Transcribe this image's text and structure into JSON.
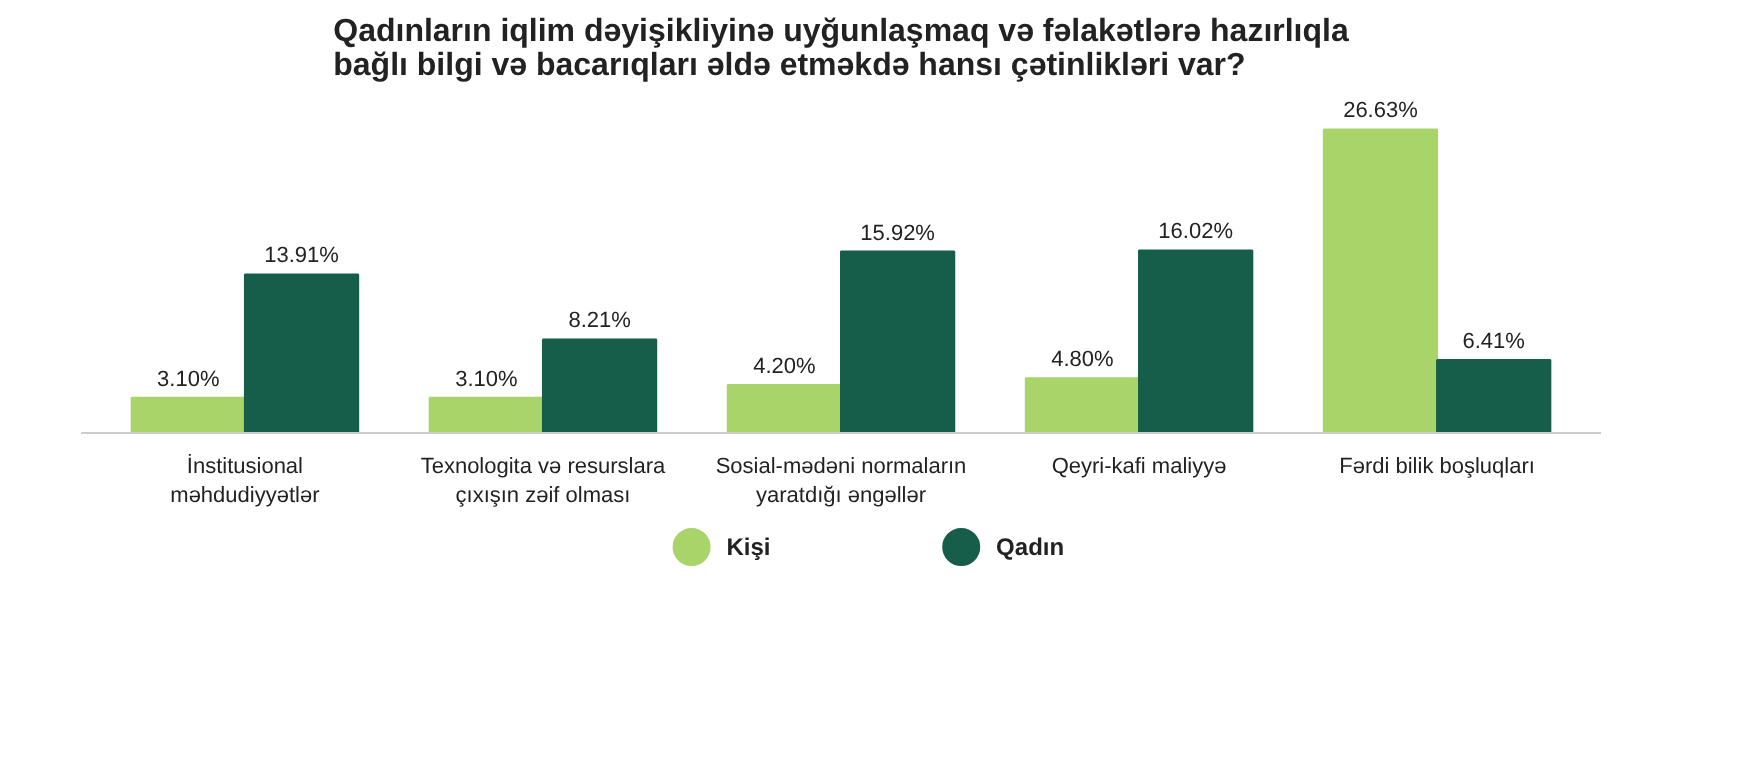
{
  "chart_data": {
    "type": "bar",
    "title": "Qadınların iqlim dəyişikliyinə uyğunlaşmaq və fəlakətlərə hazırlıqla bağlı bilgi və bacarıqları əldə etməkdə hansı çətinlikləri var?",
    "categories": [
      "İnstitusional məhdudiyyətlər",
      "Texnologita və resurslara çıxışın zəif olması",
      "Sosial-mədəni normaların yaratdığı əngəllər",
      "Qeyri-kafi maliyyə",
      "Fərdi bilik boşluqları"
    ],
    "series": [
      {
        "name": "Kişi",
        "color": "#a8d46a",
        "values": [
          3.1,
          3.1,
          4.2,
          4.8,
          26.63
        ],
        "value_labels": [
          "3.10%",
          "3.10%",
          "4.20%",
          "4.80%",
          "26.63%"
        ]
      },
      {
        "name": "Qadın",
        "color": "#165e4a",
        "values": [
          13.91,
          8.21,
          15.92,
          16.02,
          6.41
        ],
        "value_labels": [
          "13.91%",
          "8.21%",
          "15.92%",
          "16.02%",
          "6.41%"
        ]
      }
    ],
    "legend": "bottom"
  }
}
